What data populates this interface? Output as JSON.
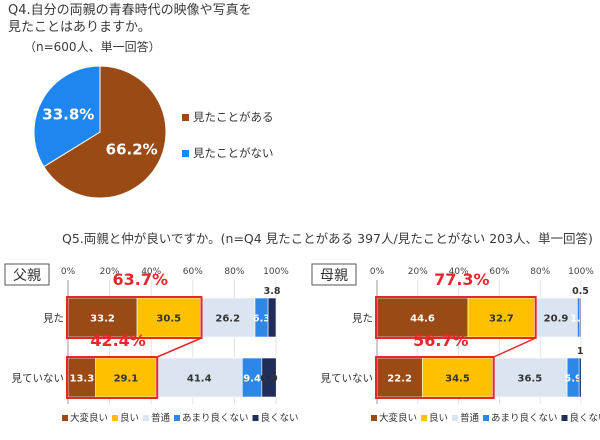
{
  "q4": {
    "title_line1": "Q4.自分の両親の青春時代の映像や写真を",
    "title_line2": "見たことはありますか。",
    "note": "（n=600人、単一回答）"
  },
  "q5": {
    "title": "Q5.両親と仲が良いですか。(n=Q4 見たことがある 397人/見たことがない 203人、単一回答)"
  },
  "colors": {
    "pie_seen": "#9a4a14",
    "pie_not_seen": "#1f86f0",
    "very_good": "#9a4a14",
    "good": "#ffc000",
    "normal": "#dbe5f1",
    "not_so_good": "#2e86e6",
    "not_good": "#1f2d5a",
    "highlight": "#e8262b"
  },
  "chart_data": [
    {
      "type": "pie",
      "title": "Q4.自分の両親の青春時代の映像や写真を見たことはありますか。",
      "slices": [
        {
          "label": "見たことがある",
          "value": 66.2,
          "display": "66.2%",
          "color": "#9a4a14"
        },
        {
          "label": "見たことがない",
          "value": 33.8,
          "display": "33.8%",
          "color": "#1f86f0"
        }
      ],
      "legend_position": "right"
    },
    {
      "type": "bar",
      "orientation": "horizontal-stacked-100",
      "panel_label": "父親",
      "categories": [
        "見た",
        "見ていない"
      ],
      "xlim": [
        0,
        100
      ],
      "ticks": [
        "0%",
        "20%",
        "40%",
        "60%",
        "80%",
        "100%"
      ],
      "series": [
        {
          "name": "大変良い",
          "values": [
            33.2,
            13.3
          ]
        },
        {
          "name": "良い",
          "values": [
            30.5,
            29.1
          ]
        },
        {
          "name": "普通",
          "values": [
            26.2,
            41.4
          ]
        },
        {
          "name": "あまり良くない",
          "values": [
            6.3,
            9.4
          ]
        },
        {
          "name": "良くない",
          "values": [
            3.8,
            6.9
          ]
        }
      ],
      "highlight_totals": [
        "63.7%",
        "42.4%"
      ],
      "legend_position": "bottom"
    },
    {
      "type": "bar",
      "orientation": "horizontal-stacked-100",
      "panel_label": "母親",
      "categories": [
        "見た",
        "見ていない"
      ],
      "xlim": [
        0,
        100
      ],
      "ticks": [
        "0%",
        "20%",
        "40%",
        "60%",
        "80%",
        "100%"
      ],
      "series": [
        {
          "name": "大変良い",
          "values": [
            44.6,
            22.2
          ]
        },
        {
          "name": "良い",
          "values": [
            32.7,
            34.5
          ]
        },
        {
          "name": "普通",
          "values": [
            20.9,
            36.5
          ]
        },
        {
          "name": "あまり良くない",
          "values": [
            1.3,
            5.9
          ]
        },
        {
          "name": "良くない",
          "values": [
            0.5,
            1.0
          ]
        }
      ],
      "highlight_totals": [
        "77.3%",
        "56.7%"
      ],
      "legend_position": "bottom"
    }
  ]
}
